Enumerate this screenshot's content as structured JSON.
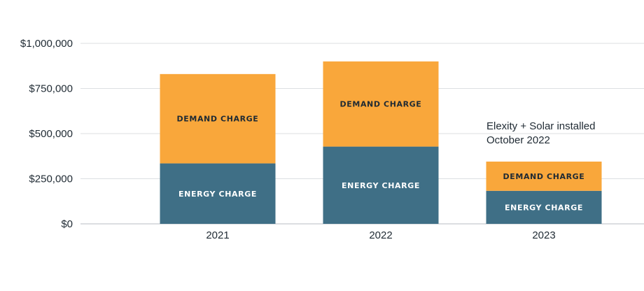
{
  "chart_data": {
    "type": "bar",
    "stacked": true,
    "categories": [
      "2021",
      "2022",
      "2023"
    ],
    "series": [
      {
        "name": "ENERGY CHARGE",
        "color": "#3f6f86",
        "label_color": "#ffffff",
        "values": [
          335000,
          428000,
          183000
        ]
      },
      {
        "name": "DEMAND CHARGE",
        "color": "#f9a73b",
        "label_color": "#1f2a33",
        "values": [
          495000,
          472000,
          162000
        ]
      }
    ],
    "ylim": [
      0,
      1000000
    ],
    "yticks": [
      0,
      250000,
      500000,
      750000,
      1000000
    ],
    "ytick_labels": [
      "$0",
      "$250,000",
      "$500,000",
      "$750,000",
      "$1,000,000"
    ],
    "grid": true,
    "annotation": {
      "lines": [
        "Elexity + Solar installed",
        "October 2022"
      ],
      "category": "2023"
    },
    "title": "",
    "xlabel": "",
    "ylabel": ""
  }
}
